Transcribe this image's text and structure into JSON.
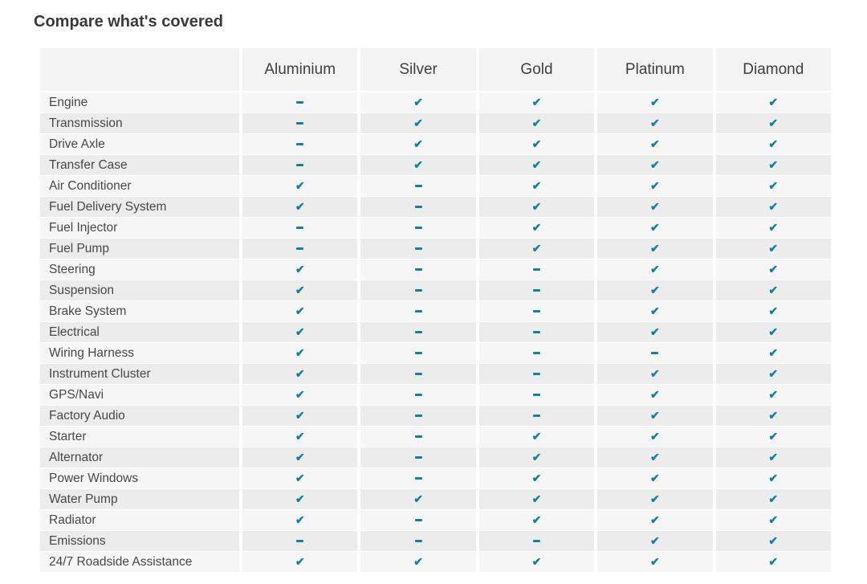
{
  "title": "Compare what's covered",
  "table": {
    "plans": [
      "Aluminium",
      "Silver",
      "Gold",
      "Platinum",
      "Diamond"
    ],
    "symbols": {
      "covered": "✔",
      "not_covered": "-"
    },
    "colors": {
      "mark": "#0f80a6",
      "header_bg": "#f3f3f3",
      "row_odd_bg": "#f6f6f6",
      "row_even_bg": "#ececec",
      "title_text": "#3a3a3a",
      "label_text": "#474747",
      "header_text": "#3e3e3e"
    },
    "rows": [
      {
        "feature": "Engine",
        "covered": [
          false,
          true,
          true,
          true,
          true
        ]
      },
      {
        "feature": "Transmission",
        "covered": [
          false,
          true,
          true,
          true,
          true
        ]
      },
      {
        "feature": "Drive Axle",
        "covered": [
          false,
          true,
          true,
          true,
          true
        ]
      },
      {
        "feature": "Transfer Case",
        "covered": [
          false,
          true,
          true,
          true,
          true
        ]
      },
      {
        "feature": "Air Conditioner",
        "covered": [
          true,
          false,
          true,
          true,
          true
        ]
      },
      {
        "feature": "Fuel Delivery System",
        "covered": [
          true,
          false,
          true,
          true,
          true
        ]
      },
      {
        "feature": "Fuel Injector",
        "covered": [
          false,
          false,
          true,
          true,
          true
        ]
      },
      {
        "feature": "Fuel Pump",
        "covered": [
          false,
          false,
          true,
          true,
          true
        ]
      },
      {
        "feature": "Steering",
        "covered": [
          true,
          false,
          false,
          true,
          true
        ]
      },
      {
        "feature": "Suspension",
        "covered": [
          true,
          false,
          false,
          true,
          true
        ]
      },
      {
        "feature": "Brake System",
        "covered": [
          true,
          false,
          false,
          true,
          true
        ]
      },
      {
        "feature": "Electrical",
        "covered": [
          true,
          false,
          false,
          true,
          true
        ]
      },
      {
        "feature": "Wiring Harness",
        "covered": [
          true,
          false,
          false,
          false,
          true
        ]
      },
      {
        "feature": "Instrument Cluster",
        "covered": [
          true,
          false,
          false,
          true,
          true
        ]
      },
      {
        "feature": "GPS/Navi",
        "covered": [
          true,
          false,
          false,
          true,
          true
        ]
      },
      {
        "feature": "Factory Audio",
        "covered": [
          true,
          false,
          false,
          true,
          true
        ]
      },
      {
        "feature": "Starter",
        "covered": [
          true,
          false,
          true,
          true,
          true
        ]
      },
      {
        "feature": "Alternator",
        "covered": [
          true,
          false,
          true,
          true,
          true
        ]
      },
      {
        "feature": "Power Windows",
        "covered": [
          true,
          false,
          true,
          true,
          true
        ]
      },
      {
        "feature": "Water Pump",
        "covered": [
          true,
          true,
          true,
          true,
          true
        ]
      },
      {
        "feature": "Radiator",
        "covered": [
          true,
          false,
          true,
          true,
          true
        ]
      },
      {
        "feature": "Emissions",
        "covered": [
          false,
          false,
          false,
          true,
          true
        ]
      },
      {
        "feature": "24/7 Roadside Assistance",
        "covered": [
          true,
          true,
          true,
          true,
          true
        ]
      }
    ]
  }
}
